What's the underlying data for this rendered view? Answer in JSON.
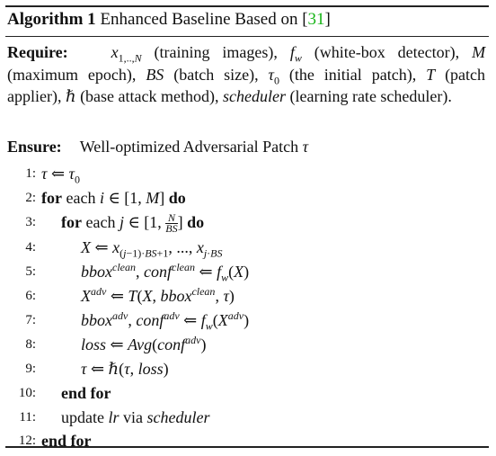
{
  "title": {
    "label": "Algorithm 1",
    "text": "Enhanced Baseline Based on [",
    "cite": "31",
    "close": "]"
  },
  "require": {
    "keyword": "Require:",
    "t1": "(training images),",
    "t2": "(white-box detector),",
    "t3": "(maximum epoch),",
    "t4": "(batch size),",
    "t5": "(the initial patch),",
    "t6": "(patch applier),",
    "t7": "(base attack method),",
    "t8": "(learning rate scheduler)."
  },
  "ensure": {
    "keyword": "Ensure:",
    "text": "Well-optimized Adversarial Patch"
  },
  "keywords": {
    "for_each": "for",
    "each": "each",
    "do": "do",
    "end_for": "end for",
    "update": "update",
    "via": "via"
  },
  "line_numbers": [
    "1:",
    "2:",
    "3:",
    "4:",
    "5:",
    "6:",
    "7:",
    "8:",
    "9:",
    "10:",
    "11:",
    "12:"
  ]
}
